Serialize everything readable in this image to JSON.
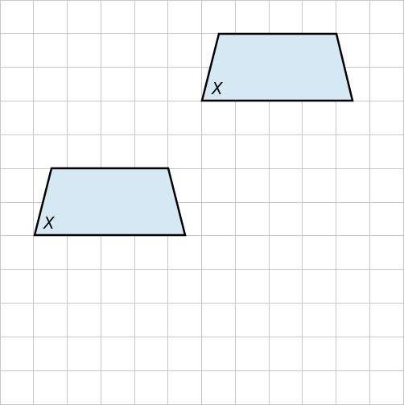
{
  "grid": {
    "columns": 12,
    "rows": 12,
    "line_color": "#c8c8c8",
    "background": "#ffffff"
  },
  "figures": [
    {
      "name": "trapezoid-top-right",
      "fill": "#d5e9f4",
      "stroke": "#000000",
      "vertex_label": "X"
    },
    {
      "name": "trapezoid-bottom-left",
      "fill": "#d5e9f4",
      "stroke": "#000000",
      "vertex_label": "X"
    }
  ]
}
